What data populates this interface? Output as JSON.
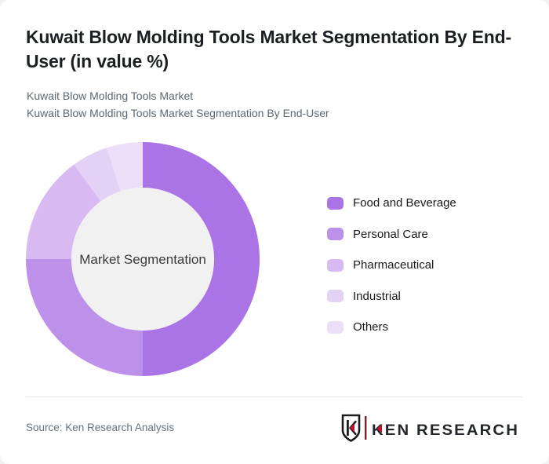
{
  "header": {
    "title": "Kuwait Blow Molding Tools Market Segmentation By End-User (in value %)",
    "subtitle_line1": "Kuwait Blow Molding Tools Market",
    "subtitle_line2": "Kuwait Blow Molding Tools Market Segmentation By End-User"
  },
  "chart_data": {
    "type": "pie",
    "variant": "donut",
    "title": "Kuwait Blow Molding Tools Market Segmentation By End-User (in value %)",
    "units": "value %",
    "center_label": "Market Segmentation",
    "categories": [
      "Food and Beverage",
      "Personal Care",
      "Pharmaceutical",
      "Industrial",
      "Others"
    ],
    "values": [
      50,
      25,
      15,
      5,
      5
    ],
    "colors": [
      "#aa74e6",
      "#bd91e9",
      "#d8b9f1",
      "#e4d1f6",
      "#eddefa"
    ],
    "start_angle_deg": 0,
    "direction": "clockwise",
    "legend_position": "right",
    "inner_circle_color": "#f1f1f2",
    "outer_radius_px": 149,
    "inner_radius_px": 91
  },
  "footer": {
    "source": "Source: Ken Research Analysis",
    "logo_text": "KEN RESEARCH"
  },
  "colors": {
    "title_text": "#1b1f23",
    "subtitle_text": "#5c6873",
    "logo_red": "#c8102e",
    "logo_dark": "#23262b"
  }
}
